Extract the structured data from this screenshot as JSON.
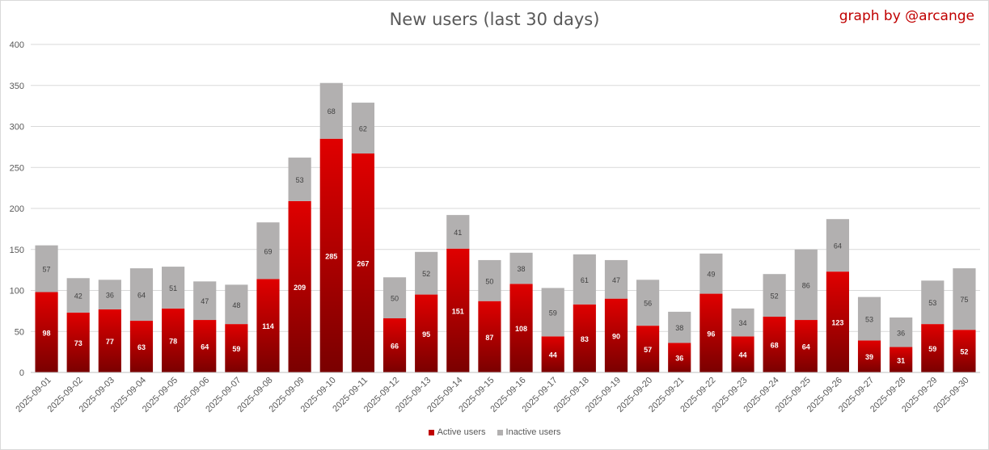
{
  "chart_data": {
    "type": "bar",
    "stacked": true,
    "title": "New users (last 30 days)",
    "credit": "graph by @arcange",
    "xlabel": "",
    "ylabel": "",
    "ylim": [
      0,
      400
    ],
    "yticks": [
      0,
      50,
      100,
      150,
      200,
      250,
      300,
      350,
      400
    ],
    "grid": true,
    "legend_position": "bottom",
    "categories": [
      "2025-09-01",
      "2025-09-02",
      "2025-09-03",
      "2025-09-04",
      "2025-09-05",
      "2025-09-06",
      "2025-09-07",
      "2025-09-08",
      "2025-09-09",
      "2025-09-10",
      "2025-09-11",
      "2025-09-12",
      "2025-09-13",
      "2025-09-14",
      "2025-09-15",
      "2025-09-16",
      "2025-09-17",
      "2025-09-18",
      "2025-09-19",
      "2025-09-20",
      "2025-09-21",
      "2025-09-22",
      "2025-09-23",
      "2025-09-24",
      "2025-09-25",
      "2025-09-26",
      "2025-09-27",
      "2025-09-28",
      "2025-09-29",
      "2025-09-30"
    ],
    "series": [
      {
        "name": "Active users",
        "color": "#c00000",
        "values": [
          98,
          73,
          77,
          63,
          78,
          64,
          59,
          114,
          209,
          285,
          267,
          66,
          95,
          151,
          87,
          108,
          44,
          83,
          90,
          57,
          36,
          96,
          44,
          68,
          64,
          123,
          39,
          31,
          59,
          52
        ]
      },
      {
        "name": "Inactive users",
        "color": "#b2b0b0",
        "values": [
          57,
          42,
          36,
          64,
          51,
          47,
          48,
          69,
          53,
          68,
          62,
          50,
          52,
          41,
          50,
          38,
          59,
          61,
          47,
          56,
          38,
          49,
          34,
          52,
          86,
          64,
          53,
          36,
          53,
          75
        ]
      }
    ]
  }
}
